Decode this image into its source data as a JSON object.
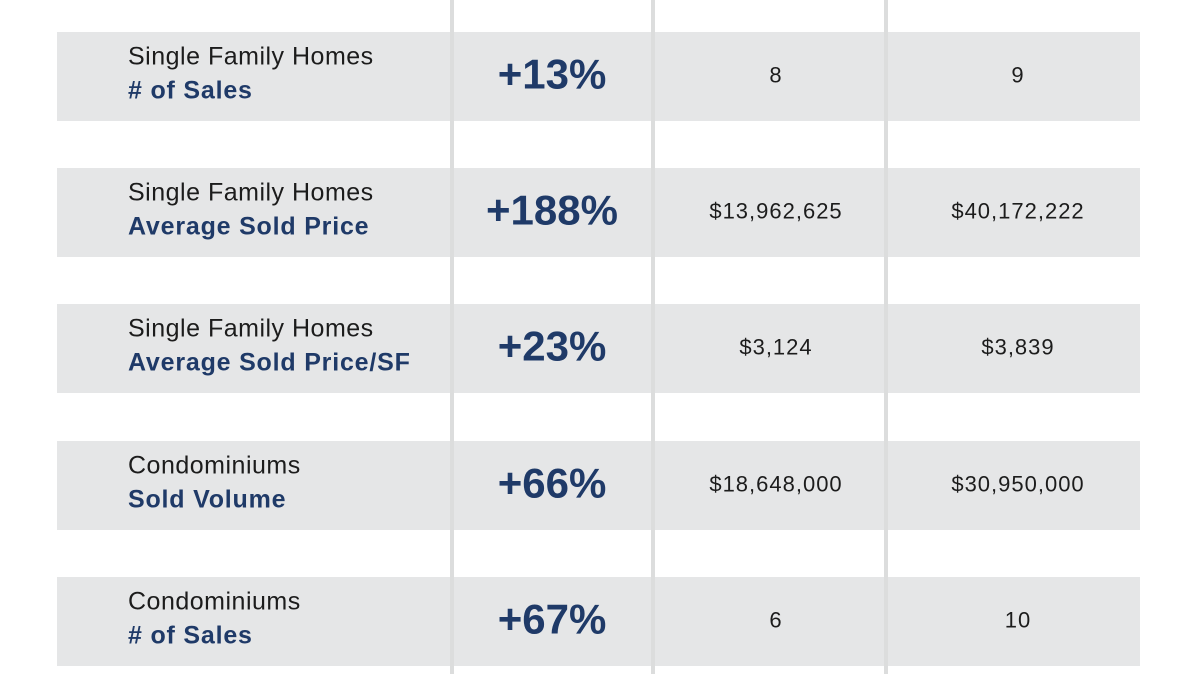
{
  "table": {
    "rows": [
      {
        "category": "Single Family Homes",
        "metric": "# of Sales",
        "change": "+13%",
        "previous": "8",
        "current": "9"
      },
      {
        "category": "Single Family Homes",
        "metric": "Average Sold Price",
        "change": "+188%",
        "previous": "$13,962,625",
        "current": "$40,172,222"
      },
      {
        "category": "Single Family Homes",
        "metric": "Average Sold Price/SF",
        "change": "+23%",
        "previous": "$3,124",
        "current": "$3,839"
      },
      {
        "category": "Condominiums",
        "metric": "Sold Volume",
        "change": "+66%",
        "previous": "$18,648,000",
        "current": "$30,950,000"
      },
      {
        "category": "Condominiums",
        "metric": "# of Sales",
        "change": "+67%",
        "previous": "6",
        "current": "10"
      }
    ]
  }
}
